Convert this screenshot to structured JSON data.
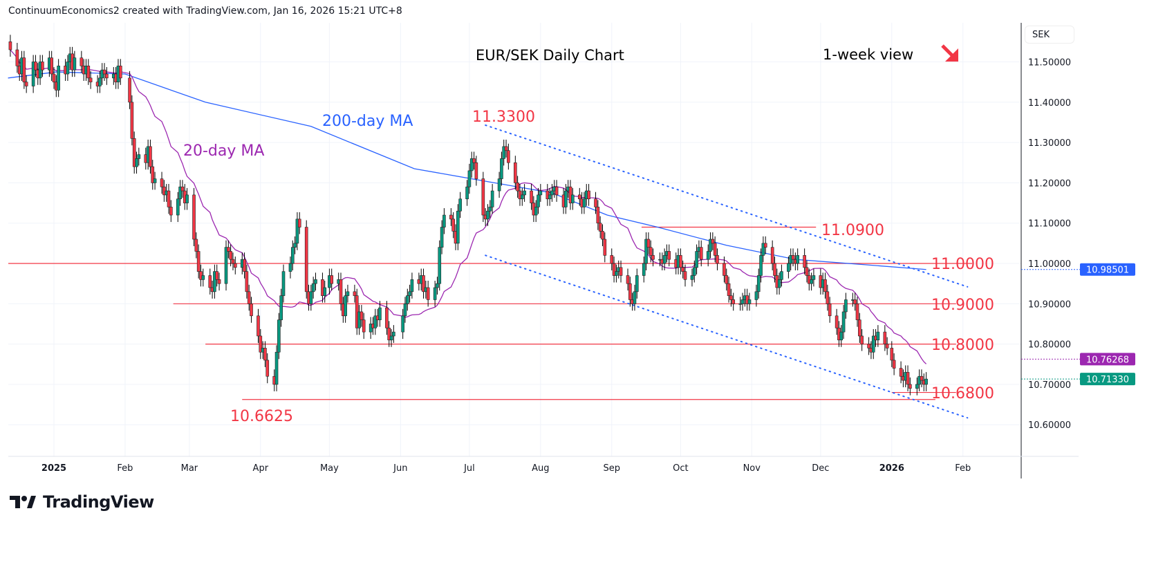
{
  "header": "ContinuumEconomics2 created with TradingView.com, Jan 16, 2026 15:21 UTC+8",
  "currency_button": "SEK",
  "logo_text": "TradingView",
  "chart_data": {
    "type": "candlestick",
    "title": "EUR/SEK Daily Chart",
    "subtitle": "1-week view",
    "outlook_arrow": "down-right",
    "y_axis": {
      "ticks": [
        "11.50000",
        "11.40000",
        "11.30000",
        "11.20000",
        "11.10000",
        "11.00000",
        "10.90000",
        "10.80000",
        "10.70000",
        "10.60000"
      ],
      "ylim": [
        10.53,
        11.58
      ]
    },
    "x_axis": {
      "ticks": [
        {
          "label": "2025",
          "date": "2025-01-01"
        },
        {
          "label": "Feb",
          "date": "2025-02-01"
        },
        {
          "label": "Mar",
          "date": "2025-03-01"
        },
        {
          "label": "Apr",
          "date": "2025-04-01"
        },
        {
          "label": "May",
          "date": "2025-05-01"
        },
        {
          "label": "Jun",
          "date": "2025-06-01"
        },
        {
          "label": "Jul",
          "date": "2025-07-01"
        },
        {
          "label": "Aug",
          "date": "2025-08-01"
        },
        {
          "label": "Sep",
          "date": "2025-09-01"
        },
        {
          "label": "Oct",
          "date": "2025-10-01"
        },
        {
          "label": "Nov",
          "date": "2025-11-01"
        },
        {
          "label": "Dec",
          "date": "2025-12-01"
        },
        {
          "label": "2026",
          "date": "2026-01-01"
        },
        {
          "label": "Feb",
          "date": "2026-02-01"
        }
      ]
    },
    "grid": true,
    "colors": {
      "up": "#089981",
      "down": "#f23645",
      "ma20": "#9c27b0",
      "ma200": "#2962ff",
      "levels": "#f23645",
      "trend": "#2962ff"
    },
    "daily_closes_by_month": [
      {
        "month": "2024-12",
        "closes": [
          11.53,
          11.49,
          11.47,
          11.51,
          11.45,
          11.44,
          11.5,
          11.48,
          11.46,
          11.5,
          11.48,
          11.51,
          11.47
        ]
      },
      {
        "month": "2025-01",
        "closes": [
          11.45,
          11.43,
          11.49,
          11.47,
          11.5,
          11.52,
          11.48,
          11.51,
          11.49,
          11.47,
          11.49,
          11.46,
          11.45,
          11.44,
          11.46,
          11.48,
          11.47,
          11.46,
          11.47,
          11.45,
          11.49,
          11.46
        ]
      },
      {
        "month": "2025-02",
        "closes": [
          11.4,
          11.31,
          11.24,
          11.26,
          11.27,
          11.25,
          11.29,
          11.24,
          11.2,
          11.21,
          11.19,
          11.17,
          11.18,
          11.14,
          11.12,
          11.16,
          11.19,
          11.18,
          11.15,
          11.17
        ]
      },
      {
        "month": "2025-03",
        "closes": [
          11.06,
          11.03,
          10.98,
          10.96,
          10.97,
          10.94,
          10.93,
          10.98,
          10.96,
          10.95,
          11.04,
          11.03,
          11.01,
          11.0,
          10.99,
          11.01,
          10.98,
          10.93,
          10.9,
          10.87,
          10.82
        ]
      },
      {
        "month": "2025-04",
        "closes": [
          10.78,
          10.79,
          10.76,
          10.72,
          10.7,
          10.78,
          10.86,
          10.92,
          10.98,
          11.0,
          11.04,
          11.05,
          11.11,
          11.09,
          10.93,
          10.9,
          10.93,
          10.95,
          10.96,
          10.92,
          10.94
        ]
      },
      {
        "month": "2025-05",
        "closes": [
          10.97,
          10.95,
          10.96,
          10.9,
          10.87,
          10.92,
          10.93,
          10.92,
          10.84,
          10.88,
          10.86,
          10.83,
          10.85,
          10.84,
          10.87,
          10.86,
          10.89,
          10.84,
          10.81,
          10.82,
          10.83
        ]
      },
      {
        "month": "2025-06",
        "closes": [
          10.87,
          10.9,
          10.92,
          10.93,
          10.96,
          10.95,
          10.97,
          10.93,
          10.94,
          10.91,
          10.94,
          10.95,
          11.04,
          11.09,
          11.12,
          11.11,
          11.08,
          11.05,
          11.13,
          11.16,
          11.19
        ]
      },
      {
        "month": "2025-07",
        "closes": [
          11.23,
          11.26,
          11.25,
          11.21,
          11.12,
          11.11,
          11.13,
          11.14,
          11.18,
          11.21,
          11.26,
          11.29,
          11.28,
          11.25,
          11.2,
          11.18,
          11.16,
          11.17,
          11.18,
          11.15,
          11.12,
          11.14,
          11.17
        ]
      },
      {
        "month": "2025-08",
        "closes": [
          11.18,
          11.16,
          11.17,
          11.18,
          11.19,
          11.17,
          11.14,
          11.18,
          11.19,
          11.15,
          11.17,
          11.16,
          11.14,
          11.16,
          11.18,
          11.16,
          11.14,
          11.1,
          11.08,
          11.06,
          11.02
        ]
      },
      {
        "month": "2025-09",
        "closes": [
          11.0,
          10.97,
          10.98,
          10.99,
          10.97,
          10.95,
          10.91,
          10.9,
          10.93,
          10.97,
          11.0,
          11.06,
          11.04,
          11.02,
          11.01,
          11.01,
          11.0,
          11.02,
          11.03,
          11.01,
          10.99,
          11.02
        ]
      },
      {
        "month": "2025-10",
        "closes": [
          10.99,
          10.98,
          10.96,
          10.97,
          10.99,
          11.03,
          11.04,
          11.01,
          11.03,
          11.06,
          11.05,
          11.02,
          11.0,
          10.97,
          10.95,
          10.92,
          10.91,
          10.9,
          10.9,
          10.91,
          10.92,
          10.9,
          10.91
        ]
      },
      {
        "month": "2025-11",
        "closes": [
          10.93,
          10.97,
          11.02,
          11.05,
          11.04,
          11.0,
          10.97,
          10.94,
          10.96,
          10.98,
          11.0,
          11.02,
          11.01,
          11.0,
          11.02,
          10.99,
          10.97,
          10.95,
          10.96,
          10.97
        ]
      },
      {
        "month": "2025-12",
        "closes": [
          10.94,
          10.96,
          10.93,
          10.9,
          10.87,
          10.84,
          10.81,
          10.83,
          10.88,
          10.91,
          10.91,
          10.9,
          10.86,
          10.82,
          10.8,
          10.79,
          10.78,
          10.82,
          10.81,
          10.83,
          10.8,
          10.79
        ]
      },
      {
        "month": "2026-01",
        "closes": [
          10.76,
          10.74,
          10.72,
          10.71,
          10.73,
          10.7,
          10.69,
          10.7,
          10.72,
          10.71,
          10.7,
          10.7133
        ]
      }
    ],
    "ma200": {
      "label": "200-day MA",
      "points": [
        [
          "2024-12-12",
          11.46
        ],
        [
          "2025-01-02",
          11.475
        ],
        [
          "2025-02-01",
          11.47
        ],
        [
          "2025-03-08",
          11.4
        ],
        [
          "2025-04-23",
          11.34
        ],
        [
          "2025-06-07",
          11.235
        ],
        [
          "2025-07-07",
          11.205
        ],
        [
          "2025-08-06",
          11.175
        ],
        [
          "2025-08-30",
          11.12
        ],
        [
          "2025-09-21",
          11.09
        ],
        [
          "2025-10-21",
          11.045
        ],
        [
          "2025-11-20",
          11.01
        ],
        [
          "2025-12-20",
          10.997
        ],
        [
          "2026-01-16",
          10.985
        ]
      ]
    },
    "ma20": {
      "label": "20-day MA"
    },
    "price_badges": [
      {
        "value": "10.98501",
        "color": "#2962ff",
        "price": 10.98501
      },
      {
        "value": "10.76268",
        "color": "#9c27b0",
        "price": 10.76268
      },
      {
        "value": "10.71330",
        "color": "#089981",
        "price": 10.7133
      }
    ],
    "levels": [
      {
        "price": 11.0,
        "label": "11.0000",
        "from": "2024-12-12",
        "to": "2026-02-05"
      },
      {
        "price": 10.9,
        "label": "10.9000",
        "from": "2025-02-22",
        "to": "2026-01-29"
      },
      {
        "price": 10.8,
        "label": "10.8000",
        "from": "2025-03-08",
        "to": "2026-01-29"
      },
      {
        "price": 10.68,
        "label": "10.6800",
        "from": "2026-01-01",
        "to": "2026-01-29"
      },
      {
        "price": 11.09,
        "label": "11.0900",
        "from": "2025-09-14",
        "to": "2025-11-29"
      },
      {
        "price": 10.6625,
        "label": "10.6625",
        "from": "2025-03-24",
        "to": "2026-01-20"
      }
    ],
    "annotations": [
      {
        "text": "11.3300",
        "price": 11.33
      },
      {
        "text": "10.6625",
        "price": 10.6625
      }
    ],
    "trendlines": [
      {
        "from": [
          "2025-07-08",
          11.343
        ],
        "to": [
          "2026-02-03",
          10.942
        ]
      },
      {
        "from": [
          "2025-07-08",
          11.02
        ],
        "to": [
          "2026-02-03",
          10.617
        ]
      }
    ]
  }
}
